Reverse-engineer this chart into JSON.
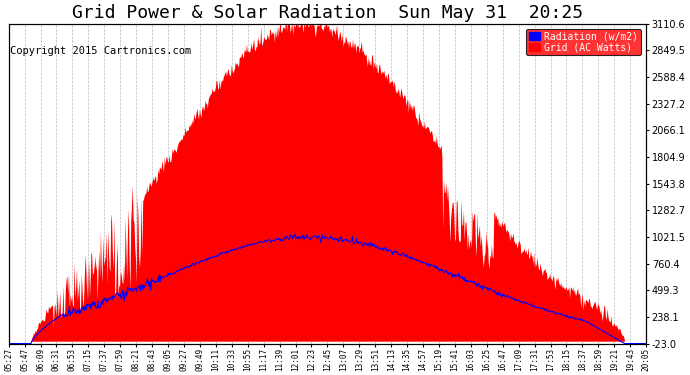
{
  "title": "Grid Power & Solar Radiation  Sun May 31  20:25",
  "copyright": "Copyright 2015 Cartronics.com",
  "ylabel_right_ticks": [
    -23.0,
    238.1,
    499.3,
    760.4,
    1021.5,
    1282.7,
    1543.8,
    1804.9,
    2066.1,
    2327.2,
    2588.4,
    2849.5,
    3110.6
  ],
  "ylim": [
    -23.0,
    3110.6
  ],
  "background_color": "#ffffff",
  "plot_bg_color": "#ffffff",
  "grid_color": "#bbbbbb",
  "title_fontsize": 13,
  "copyright_fontsize": 7.5,
  "legend_labels": [
    "Radiation (w/m2)",
    "Grid (AC Watts)"
  ],
  "x_tick_labels": [
    "05:27",
    "05:47",
    "06:09",
    "06:31",
    "06:53",
    "07:15",
    "07:37",
    "07:59",
    "08:21",
    "08:43",
    "09:05",
    "09:27",
    "09:49",
    "10:11",
    "10:33",
    "10:55",
    "11:17",
    "11:39",
    "12:01",
    "12:23",
    "12:45",
    "13:07",
    "13:29",
    "13:51",
    "14:13",
    "14:35",
    "14:57",
    "15:19",
    "15:41",
    "16:03",
    "16:25",
    "16:47",
    "17:09",
    "17:31",
    "17:53",
    "18:15",
    "18:37",
    "18:59",
    "19:21",
    "19:43",
    "20:05"
  ],
  "n_points": 800
}
